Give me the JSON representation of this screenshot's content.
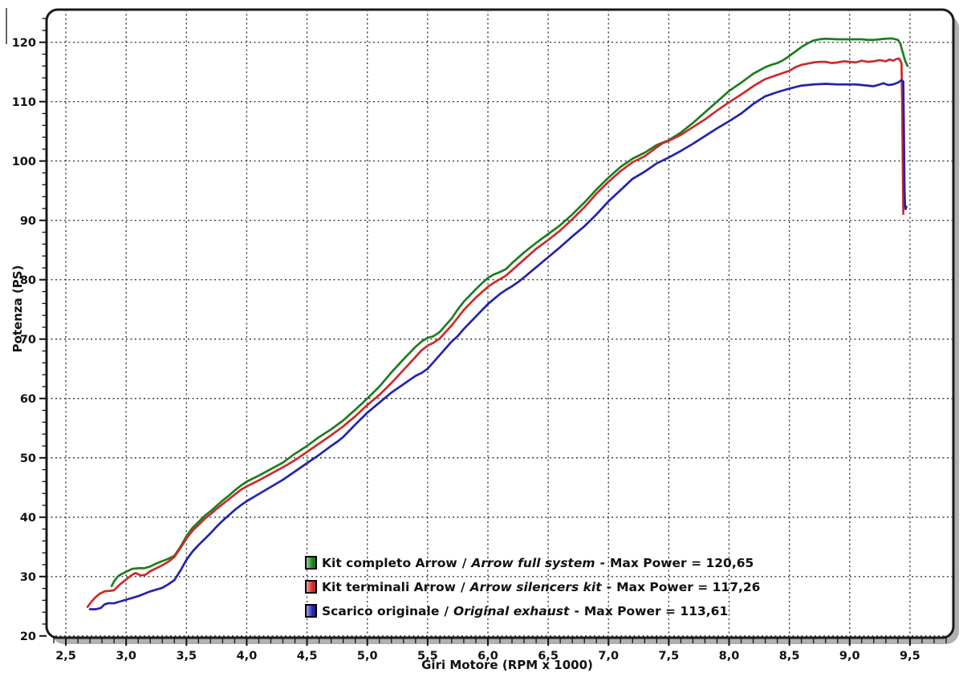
{
  "page": {
    "background": "#ffffff"
  },
  "legend": {
    "separator": "/",
    "dash": "-"
  },
  "chart_data": {
    "type": "line",
    "title": "",
    "xlabel": "Giri Motore (RPM x 1000)",
    "ylabel": "Potenza (PS)",
    "xlim": [
      2.34,
      9.86
    ],
    "ylim": [
      19.7,
      125.5
    ],
    "x_major_ticks": [
      2.5,
      3.0,
      3.5,
      4.0,
      4.5,
      5.0,
      5.5,
      6.0,
      6.5,
      7.0,
      7.5,
      8.0,
      8.5,
      9.0,
      9.5
    ],
    "x_tick_labels": [
      "2,5",
      "3,0",
      "3,5",
      "4,0",
      "4,5",
      "5,0",
      "5,5",
      "6,0",
      "6,5",
      "7,0",
      "7,5",
      "8,0",
      "8,5",
      "9,0",
      "9,5"
    ],
    "x_minor_step": 0.1,
    "y_major_ticks": [
      20,
      30,
      40,
      50,
      60,
      70,
      80,
      90,
      100,
      110,
      120
    ],
    "y_minor_step": 2,
    "grid": "dotted",
    "legend_position": "inside-bottom-center",
    "frame": {
      "stroke": "#1a1a1a",
      "shadow": "#b0b0b0",
      "background": "#ffffff",
      "grid_color": "#3a3a3a",
      "tick_color": "#111111"
    },
    "series": [
      {
        "name": "Kit completo Arrow",
        "name_en": "Arrow full system",
        "max_label": "Max Power = 120,65",
        "max_power": 120.65,
        "color": "#1e7d1e",
        "swatch_light": "#90d690",
        "points": [
          [
            2.88,
            28.4
          ],
          [
            2.9,
            29.2
          ],
          [
            2.93,
            30.0
          ],
          [
            2.96,
            30.4
          ],
          [
            3.0,
            30.8
          ],
          [
            3.05,
            31.3
          ],
          [
            3.1,
            31.4
          ],
          [
            3.15,
            31.4
          ],
          [
            3.2,
            31.7
          ],
          [
            3.25,
            32.2
          ],
          [
            3.3,
            32.6
          ],
          [
            3.35,
            33.0
          ],
          [
            3.4,
            33.5
          ],
          [
            3.45,
            35.0
          ],
          [
            3.5,
            36.8
          ],
          [
            3.55,
            38.2
          ],
          [
            3.6,
            39.2
          ],
          [
            3.65,
            40.2
          ],
          [
            3.7,
            41.0
          ],
          [
            3.75,
            41.9
          ],
          [
            3.8,
            42.8
          ],
          [
            3.85,
            43.6
          ],
          [
            3.9,
            44.5
          ],
          [
            3.95,
            45.3
          ],
          [
            4.0,
            46.0
          ],
          [
            4.1,
            47.0
          ],
          [
            4.2,
            48.1
          ],
          [
            4.3,
            49.2
          ],
          [
            4.4,
            50.7
          ],
          [
            4.5,
            52.0
          ],
          [
            4.6,
            53.5
          ],
          [
            4.7,
            54.8
          ],
          [
            4.8,
            56.3
          ],
          [
            4.9,
            58.1
          ],
          [
            5.0,
            60.0
          ],
          [
            5.1,
            62.0
          ],
          [
            5.2,
            64.4
          ],
          [
            5.3,
            66.6
          ],
          [
            5.4,
            68.7
          ],
          [
            5.45,
            69.6
          ],
          [
            5.5,
            70.2
          ],
          [
            5.55,
            70.5
          ],
          [
            5.6,
            71.2
          ],
          [
            5.7,
            73.5
          ],
          [
            5.75,
            75.0
          ],
          [
            5.8,
            76.3
          ],
          [
            5.9,
            78.4
          ],
          [
            5.95,
            79.4
          ],
          [
            6.0,
            80.3
          ],
          [
            6.05,
            80.9
          ],
          [
            6.1,
            81.3
          ],
          [
            6.15,
            81.8
          ],
          [
            6.2,
            82.8
          ],
          [
            6.3,
            84.6
          ],
          [
            6.4,
            86.2
          ],
          [
            6.5,
            87.7
          ],
          [
            6.6,
            89.2
          ],
          [
            6.7,
            91.0
          ],
          [
            6.8,
            93.0
          ],
          [
            6.9,
            95.2
          ],
          [
            7.0,
            97.2
          ],
          [
            7.1,
            99.0
          ],
          [
            7.2,
            100.4
          ],
          [
            7.3,
            101.4
          ],
          [
            7.4,
            102.7
          ],
          [
            7.45,
            103.1
          ],
          [
            7.5,
            103.5
          ],
          [
            7.6,
            104.8
          ],
          [
            7.7,
            106.4
          ],
          [
            7.8,
            108.2
          ],
          [
            7.9,
            110.0
          ],
          [
            8.0,
            111.8
          ],
          [
            8.1,
            113.2
          ],
          [
            8.2,
            114.7
          ],
          [
            8.3,
            115.8
          ],
          [
            8.35,
            116.2
          ],
          [
            8.4,
            116.5
          ],
          [
            8.45,
            117.0
          ],
          [
            8.5,
            117.7
          ],
          [
            8.6,
            119.2
          ],
          [
            8.65,
            119.8
          ],
          [
            8.7,
            120.3
          ],
          [
            8.75,
            120.5
          ],
          [
            8.8,
            120.6
          ],
          [
            8.9,
            120.5
          ],
          [
            9.0,
            120.5
          ],
          [
            9.1,
            120.5
          ],
          [
            9.15,
            120.4
          ],
          [
            9.2,
            120.4
          ],
          [
            9.3,
            120.6
          ],
          [
            9.35,
            120.65
          ],
          [
            9.4,
            120.4
          ],
          [
            9.42,
            119.8
          ],
          [
            9.44,
            118.3
          ],
          [
            9.46,
            116.9
          ],
          [
            9.48,
            116.0
          ]
        ]
      },
      {
        "name": "Kit terminali Arrow",
        "name_en": "Arrow silencers kit",
        "max_label": "Max Power = 117,26",
        "max_power": 117.26,
        "color": "#cc2a2a",
        "swatch_light": "#f2a0a0",
        "points": [
          [
            2.68,
            24.9
          ],
          [
            2.71,
            25.7
          ],
          [
            2.74,
            26.4
          ],
          [
            2.78,
            27.1
          ],
          [
            2.82,
            27.5
          ],
          [
            2.87,
            27.6
          ],
          [
            2.9,
            27.7
          ],
          [
            2.95,
            28.7
          ],
          [
            3.0,
            29.5
          ],
          [
            3.05,
            30.3
          ],
          [
            3.08,
            30.6
          ],
          [
            3.12,
            30.2
          ],
          [
            3.16,
            30.3
          ],
          [
            3.2,
            30.9
          ],
          [
            3.25,
            31.4
          ],
          [
            3.3,
            31.9
          ],
          [
            3.35,
            32.5
          ],
          [
            3.4,
            33.3
          ],
          [
            3.45,
            34.8
          ],
          [
            3.5,
            36.4
          ],
          [
            3.55,
            37.7
          ],
          [
            3.6,
            38.7
          ],
          [
            3.65,
            39.7
          ],
          [
            3.7,
            40.5
          ],
          [
            3.75,
            41.4
          ],
          [
            3.8,
            42.2
          ],
          [
            3.85,
            43.0
          ],
          [
            3.9,
            43.8
          ],
          [
            3.95,
            44.6
          ],
          [
            4.0,
            45.2
          ],
          [
            4.1,
            46.2
          ],
          [
            4.2,
            47.3
          ],
          [
            4.3,
            48.4
          ],
          [
            4.4,
            49.6
          ],
          [
            4.5,
            51.0
          ],
          [
            4.6,
            52.4
          ],
          [
            4.7,
            53.8
          ],
          [
            4.8,
            55.3
          ],
          [
            4.9,
            57.0
          ],
          [
            5.0,
            58.9
          ],
          [
            5.1,
            60.6
          ],
          [
            5.2,
            62.6
          ],
          [
            5.3,
            64.8
          ],
          [
            5.4,
            67.0
          ],
          [
            5.45,
            68.1
          ],
          [
            5.5,
            68.9
          ],
          [
            5.55,
            69.4
          ],
          [
            5.6,
            70.1
          ],
          [
            5.7,
            72.3
          ],
          [
            5.75,
            73.6
          ],
          [
            5.8,
            74.9
          ],
          [
            5.9,
            77.0
          ],
          [
            6.0,
            78.8
          ],
          [
            6.05,
            79.5
          ],
          [
            6.1,
            80.1
          ],
          [
            6.15,
            80.7
          ],
          [
            6.2,
            81.6
          ],
          [
            6.3,
            83.4
          ],
          [
            6.4,
            85.2
          ],
          [
            6.5,
            86.7
          ],
          [
            6.6,
            88.3
          ],
          [
            6.7,
            90.2
          ],
          [
            6.8,
            92.2
          ],
          [
            6.9,
            94.5
          ],
          [
            7.0,
            96.5
          ],
          [
            7.1,
            98.3
          ],
          [
            7.2,
            99.8
          ],
          [
            7.3,
            100.8
          ],
          [
            7.4,
            102.3
          ],
          [
            7.45,
            103.0
          ],
          [
            7.5,
            103.4
          ],
          [
            7.6,
            104.4
          ],
          [
            7.7,
            105.7
          ],
          [
            7.8,
            107.0
          ],
          [
            7.9,
            108.5
          ],
          [
            8.0,
            109.9
          ],
          [
            8.1,
            111.2
          ],
          [
            8.2,
            112.6
          ],
          [
            8.3,
            113.8
          ],
          [
            8.4,
            114.5
          ],
          [
            8.5,
            115.2
          ],
          [
            8.55,
            115.8
          ],
          [
            8.6,
            116.2
          ],
          [
            8.7,
            116.6
          ],
          [
            8.75,
            116.7
          ],
          [
            8.8,
            116.7
          ],
          [
            8.85,
            116.5
          ],
          [
            8.9,
            116.6
          ],
          [
            8.95,
            116.8
          ],
          [
            9.0,
            116.7
          ],
          [
            9.05,
            116.6
          ],
          [
            9.1,
            116.9
          ],
          [
            9.15,
            116.7
          ],
          [
            9.2,
            116.8
          ],
          [
            9.25,
            117.0
          ],
          [
            9.3,
            116.8
          ],
          [
            9.33,
            117.1
          ],
          [
            9.36,
            116.9
          ],
          [
            9.39,
            117.2
          ],
          [
            9.41,
            117.26
          ],
          [
            9.43,
            116.5
          ],
          [
            9.435,
            110.0
          ],
          [
            9.44,
            100.0
          ],
          [
            9.445,
            91.1
          ]
        ]
      },
      {
        "name": "Scarico originale",
        "name_en": "Original exhaust",
        "max_label": "Max Power = 113,61",
        "max_power": 113.61,
        "color": "#2323ad",
        "swatch_light": "#9f9fe8",
        "points": [
          [
            2.7,
            24.5
          ],
          [
            2.75,
            24.5
          ],
          [
            2.79,
            24.7
          ],
          [
            2.82,
            25.3
          ],
          [
            2.85,
            25.5
          ],
          [
            2.9,
            25.5
          ],
          [
            2.95,
            25.8
          ],
          [
            3.0,
            26.1
          ],
          [
            3.05,
            26.4
          ],
          [
            3.1,
            26.7
          ],
          [
            3.15,
            27.1
          ],
          [
            3.2,
            27.5
          ],
          [
            3.25,
            27.8
          ],
          [
            3.3,
            28.1
          ],
          [
            3.35,
            28.7
          ],
          [
            3.4,
            29.4
          ],
          [
            3.45,
            31.0
          ],
          [
            3.5,
            32.8
          ],
          [
            3.55,
            34.2
          ],
          [
            3.6,
            35.3
          ],
          [
            3.65,
            36.3
          ],
          [
            3.7,
            37.3
          ],
          [
            3.75,
            38.4
          ],
          [
            3.8,
            39.4
          ],
          [
            3.85,
            40.3
          ],
          [
            3.9,
            41.2
          ],
          [
            3.95,
            42.0
          ],
          [
            4.0,
            42.7
          ],
          [
            4.1,
            43.9
          ],
          [
            4.2,
            45.1
          ],
          [
            4.3,
            46.3
          ],
          [
            4.4,
            47.7
          ],
          [
            4.5,
            49.1
          ],
          [
            4.6,
            50.5
          ],
          [
            4.7,
            52.0
          ],
          [
            4.75,
            52.7
          ],
          [
            4.8,
            53.5
          ],
          [
            4.9,
            55.6
          ],
          [
            5.0,
            57.6
          ],
          [
            5.1,
            59.3
          ],
          [
            5.2,
            61.0
          ],
          [
            5.3,
            62.4
          ],
          [
            5.35,
            63.1
          ],
          [
            5.4,
            63.8
          ],
          [
            5.45,
            64.3
          ],
          [
            5.5,
            65.0
          ],
          [
            5.6,
            67.3
          ],
          [
            5.7,
            69.6
          ],
          [
            5.75,
            70.5
          ],
          [
            5.8,
            71.7
          ],
          [
            5.9,
            73.8
          ],
          [
            6.0,
            75.9
          ],
          [
            6.1,
            77.6
          ],
          [
            6.15,
            78.3
          ],
          [
            6.2,
            78.9
          ],
          [
            6.25,
            79.6
          ],
          [
            6.3,
            80.4
          ],
          [
            6.4,
            82.1
          ],
          [
            6.5,
            83.8
          ],
          [
            6.6,
            85.5
          ],
          [
            6.7,
            87.3
          ],
          [
            6.8,
            89.0
          ],
          [
            6.9,
            91.0
          ],
          [
            7.0,
            93.2
          ],
          [
            7.1,
            95.1
          ],
          [
            7.2,
            97.0
          ],
          [
            7.3,
            98.2
          ],
          [
            7.4,
            99.6
          ],
          [
            7.5,
            100.6
          ],
          [
            7.6,
            101.7
          ],
          [
            7.7,
            102.9
          ],
          [
            7.8,
            104.2
          ],
          [
            7.9,
            105.5
          ],
          [
            8.0,
            106.7
          ],
          [
            8.1,
            108.0
          ],
          [
            8.2,
            109.6
          ],
          [
            8.3,
            110.9
          ],
          [
            8.4,
            111.6
          ],
          [
            8.5,
            112.2
          ],
          [
            8.6,
            112.7
          ],
          [
            8.7,
            112.9
          ],
          [
            8.8,
            113.0
          ],
          [
            8.9,
            112.9
          ],
          [
            9.0,
            112.9
          ],
          [
            9.05,
            112.9
          ],
          [
            9.1,
            112.8
          ],
          [
            9.15,
            112.7
          ],
          [
            9.2,
            112.6
          ],
          [
            9.25,
            112.9
          ],
          [
            9.28,
            113.1
          ],
          [
            9.32,
            112.8
          ],
          [
            9.36,
            112.9
          ],
          [
            9.4,
            113.2
          ],
          [
            9.43,
            113.61
          ],
          [
            9.445,
            113.4
          ],
          [
            9.45,
            105.0
          ],
          [
            9.455,
            95.0
          ],
          [
            9.46,
            92.2
          ],
          [
            9.465,
            91.9
          ],
          [
            9.47,
            92.3
          ]
        ]
      }
    ]
  }
}
